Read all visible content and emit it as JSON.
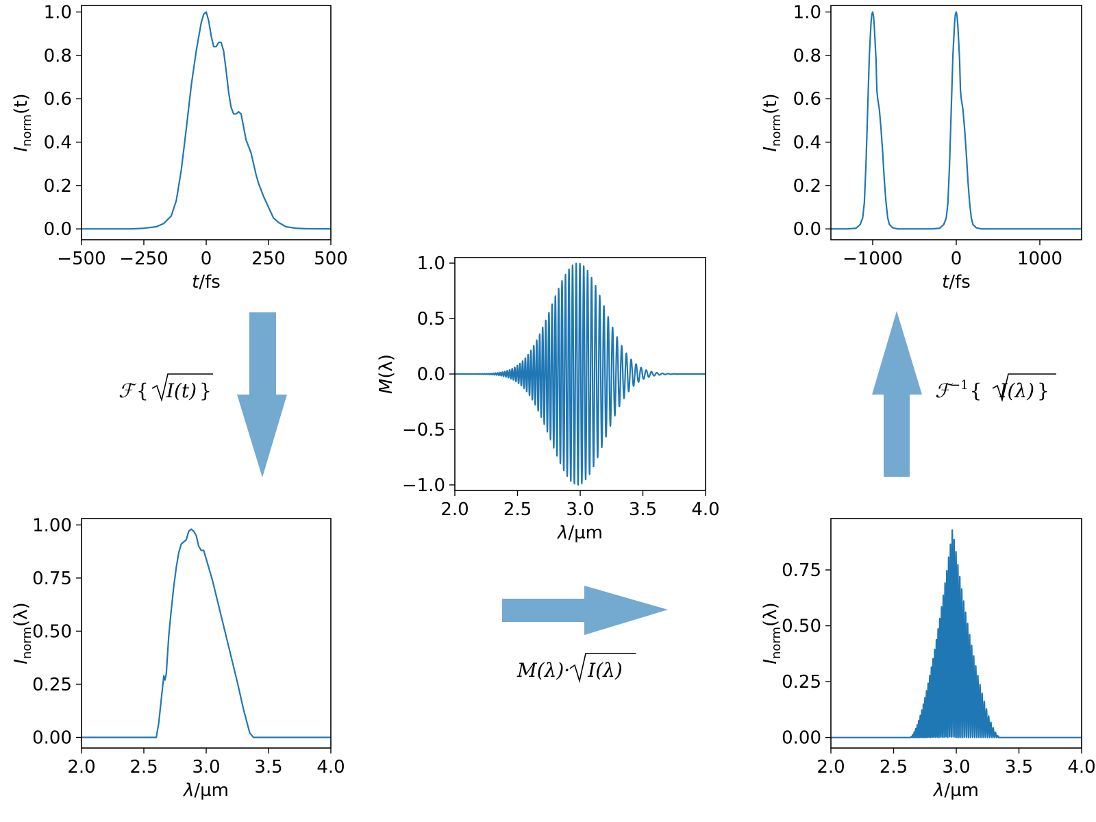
{
  "colors": {
    "series": "#1f77b4",
    "arrow": "#74a9d0"
  },
  "operations": {
    "forward": {
      "prefix": "ℱ",
      "brace_open": "{",
      "arg": "I(t)",
      "brace_close": "}"
    },
    "modulate": {
      "prefix": "M(λ)·",
      "arg": "I(λ)"
    },
    "inverse": {
      "prefix": "ℱ",
      "superscript": "−1",
      "brace_open": "{",
      "arg": "I(λ)",
      "brace_close": "}"
    }
  },
  "chart_data": [
    {
      "id": "temporal-input",
      "type": "line",
      "xlabel": {
        "base": "t",
        "unit": "/fs"
      },
      "ylabel": {
        "base": "I",
        "sub": "norm",
        "arg": "(t)"
      },
      "xlim": [
        -500,
        500
      ],
      "ylim": [
        -0.05,
        1.03
      ],
      "xticks": [
        -500,
        -250,
        0,
        250,
        500
      ],
      "xtick_labels": [
        "−500",
        "−250",
        "0",
        "250",
        "500"
      ],
      "yticks": [
        0.0,
        0.2,
        0.4,
        0.6,
        0.8,
        1.0
      ],
      "ytick_labels": [
        "0.0",
        "0.2",
        "0.4",
        "0.6",
        "0.8",
        "1.0"
      ],
      "series": [
        {
          "x": [
            -500,
            -300,
            -250,
            -200,
            -170,
            -140,
            -120,
            -100,
            -80,
            -60,
            -40,
            -20,
            -10,
            0,
            10,
            20,
            30,
            40,
            50,
            60,
            70,
            80,
            90,
            100,
            110,
            120,
            130,
            140,
            150,
            160,
            170,
            180,
            190,
            200,
            210,
            220,
            230,
            250,
            270,
            290,
            320,
            360,
            400,
            500
          ],
          "y": [
            0.0,
            0.0,
            0.003,
            0.01,
            0.025,
            0.06,
            0.13,
            0.27,
            0.46,
            0.66,
            0.82,
            0.95,
            0.99,
            1.0,
            0.96,
            0.89,
            0.84,
            0.84,
            0.86,
            0.86,
            0.82,
            0.73,
            0.63,
            0.56,
            0.53,
            0.53,
            0.54,
            0.53,
            0.47,
            0.41,
            0.38,
            0.35,
            0.3,
            0.25,
            0.21,
            0.18,
            0.15,
            0.1,
            0.05,
            0.03,
            0.01,
            0.003,
            0.001,
            0.0
          ]
        }
      ]
    },
    {
      "id": "spectral-input",
      "type": "line",
      "xlabel": {
        "base": "λ",
        "unit": "/µm"
      },
      "ylabel": {
        "base": "I",
        "sub": "norm",
        "arg": "(λ)"
      },
      "xlim": [
        2.0,
        4.0
      ],
      "ylim": [
        -0.05,
        1.03
      ],
      "xticks": [
        2.0,
        2.5,
        3.0,
        3.5,
        4.0
      ],
      "xtick_labels": [
        "2.0",
        "2.5",
        "3.0",
        "3.5",
        "4.0"
      ],
      "yticks": [
        0.0,
        0.25,
        0.5,
        0.75,
        1.0
      ],
      "ytick_labels": [
        "0.00",
        "0.25",
        "0.50",
        "0.75",
        "1.00"
      ],
      "series": [
        {
          "x": [
            2.0,
            2.6,
            2.62,
            2.64,
            2.66,
            2.67,
            2.68,
            2.7,
            2.72,
            2.74,
            2.76,
            2.78,
            2.8,
            2.82,
            2.84,
            2.86,
            2.88,
            2.9,
            2.92,
            2.94,
            2.96,
            2.98,
            3.0,
            3.05,
            3.1,
            3.15,
            3.2,
            3.25,
            3.3,
            3.35,
            3.38,
            4.0
          ],
          "y": [
            0.0,
            0.0,
            0.07,
            0.18,
            0.29,
            0.27,
            0.3,
            0.48,
            0.6,
            0.71,
            0.8,
            0.87,
            0.91,
            0.92,
            0.93,
            0.97,
            0.98,
            0.97,
            0.95,
            0.9,
            0.88,
            0.88,
            0.84,
            0.74,
            0.62,
            0.5,
            0.38,
            0.26,
            0.13,
            0.02,
            0.0,
            0.0
          ]
        }
      ]
    },
    {
      "id": "modulation",
      "type": "line",
      "xlabel": {
        "base": "λ",
        "unit": "/µm"
      },
      "ylabel": {
        "base": "M",
        "sub": "",
        "arg": "(λ)"
      },
      "xlim": [
        2.0,
        4.0
      ],
      "ylim": [
        -1.05,
        1.05
      ],
      "xticks": [
        2.0,
        2.5,
        3.0,
        3.5,
        4.0
      ],
      "xtick_labels": [
        "2.0",
        "2.5",
        "3.0",
        "3.5",
        "4.0"
      ],
      "yticks": [
        -1.0,
        -0.5,
        0.0,
        0.5,
        1.0
      ],
      "ytick_labels": [
        "−1.0",
        "−0.5",
        "0.0",
        "0.5",
        "1.0"
      ],
      "modulation": {
        "delay_fs": 1000,
        "center_um": 2.98,
        "width_um": 0.3
      },
      "series": [
        {
          "x": [],
          "y": []
        }
      ]
    },
    {
      "id": "spectral-output",
      "type": "line",
      "xlabel": {
        "base": "λ",
        "unit": "/µm"
      },
      "ylabel": {
        "base": "I",
        "sub": "norm",
        "arg": "(λ)"
      },
      "xlim": [
        2.0,
        4.0
      ],
      "ylim": [
        -0.047,
        0.98
      ],
      "xticks": [
        2.0,
        2.5,
        3.0,
        3.5,
        4.0
      ],
      "xtick_labels": [
        "2.0",
        "2.5",
        "3.0",
        "3.5",
        "4.0"
      ],
      "yticks": [
        0.0,
        0.25,
        0.5,
        0.75
      ],
      "ytick_labels": [
        "0.00",
        "0.25",
        "0.50",
        "0.75"
      ],
      "envelope": {
        "center_um": 2.97,
        "start_um": 2.63,
        "end_um": 3.35,
        "peak": 0.94
      },
      "series": [
        {
          "x": [],
          "y": []
        }
      ]
    },
    {
      "id": "temporal-output",
      "type": "line",
      "xlabel": {
        "base": "t",
        "unit": "/fs"
      },
      "ylabel": {
        "base": "I",
        "sub": "norm",
        "arg": "(t)"
      },
      "xlim": [
        -1500,
        1500
      ],
      "ylim": [
        -0.05,
        1.03
      ],
      "xticks": [
        -1000,
        0,
        1000
      ],
      "xtick_labels": [
        "−1000",
        "0",
        "1000"
      ],
      "yticks": [
        0.0,
        0.2,
        0.4,
        0.6,
        0.8,
        1.0
      ],
      "ytick_labels": [
        "0.0",
        "0.2",
        "0.4",
        "0.6",
        "0.8",
        "1.0"
      ],
      "series": [
        {
          "x": [
            -1500,
            -1300,
            -1200,
            -1150,
            -1120,
            -1100,
            -1080,
            -1060,
            -1040,
            -1020,
            -1010,
            -1000,
            -990,
            -980,
            -960,
            -950,
            -940,
            -920,
            -900,
            -880,
            -860,
            -840,
            -820,
            -800,
            -760,
            -700,
            -300,
            -200,
            -150,
            -120,
            -100,
            -80,
            -60,
            -40,
            -20,
            -10,
            0,
            10,
            20,
            40,
            50,
            60,
            80,
            100,
            120,
            140,
            160,
            180,
            200,
            240,
            300,
            1500
          ],
          "y": [
            0.0,
            0.0,
            0.003,
            0.02,
            0.05,
            0.12,
            0.3,
            0.55,
            0.8,
            0.95,
            0.99,
            1.0,
            0.98,
            0.93,
            0.78,
            0.64,
            0.6,
            0.55,
            0.46,
            0.35,
            0.22,
            0.12,
            0.05,
            0.02,
            0.005,
            0.0,
            0.0,
            0.003,
            0.02,
            0.05,
            0.12,
            0.3,
            0.55,
            0.8,
            0.95,
            0.99,
            1.0,
            0.98,
            0.93,
            0.78,
            0.64,
            0.6,
            0.55,
            0.46,
            0.35,
            0.22,
            0.12,
            0.05,
            0.02,
            0.005,
            0.0,
            0.0
          ]
        }
      ]
    }
  ]
}
